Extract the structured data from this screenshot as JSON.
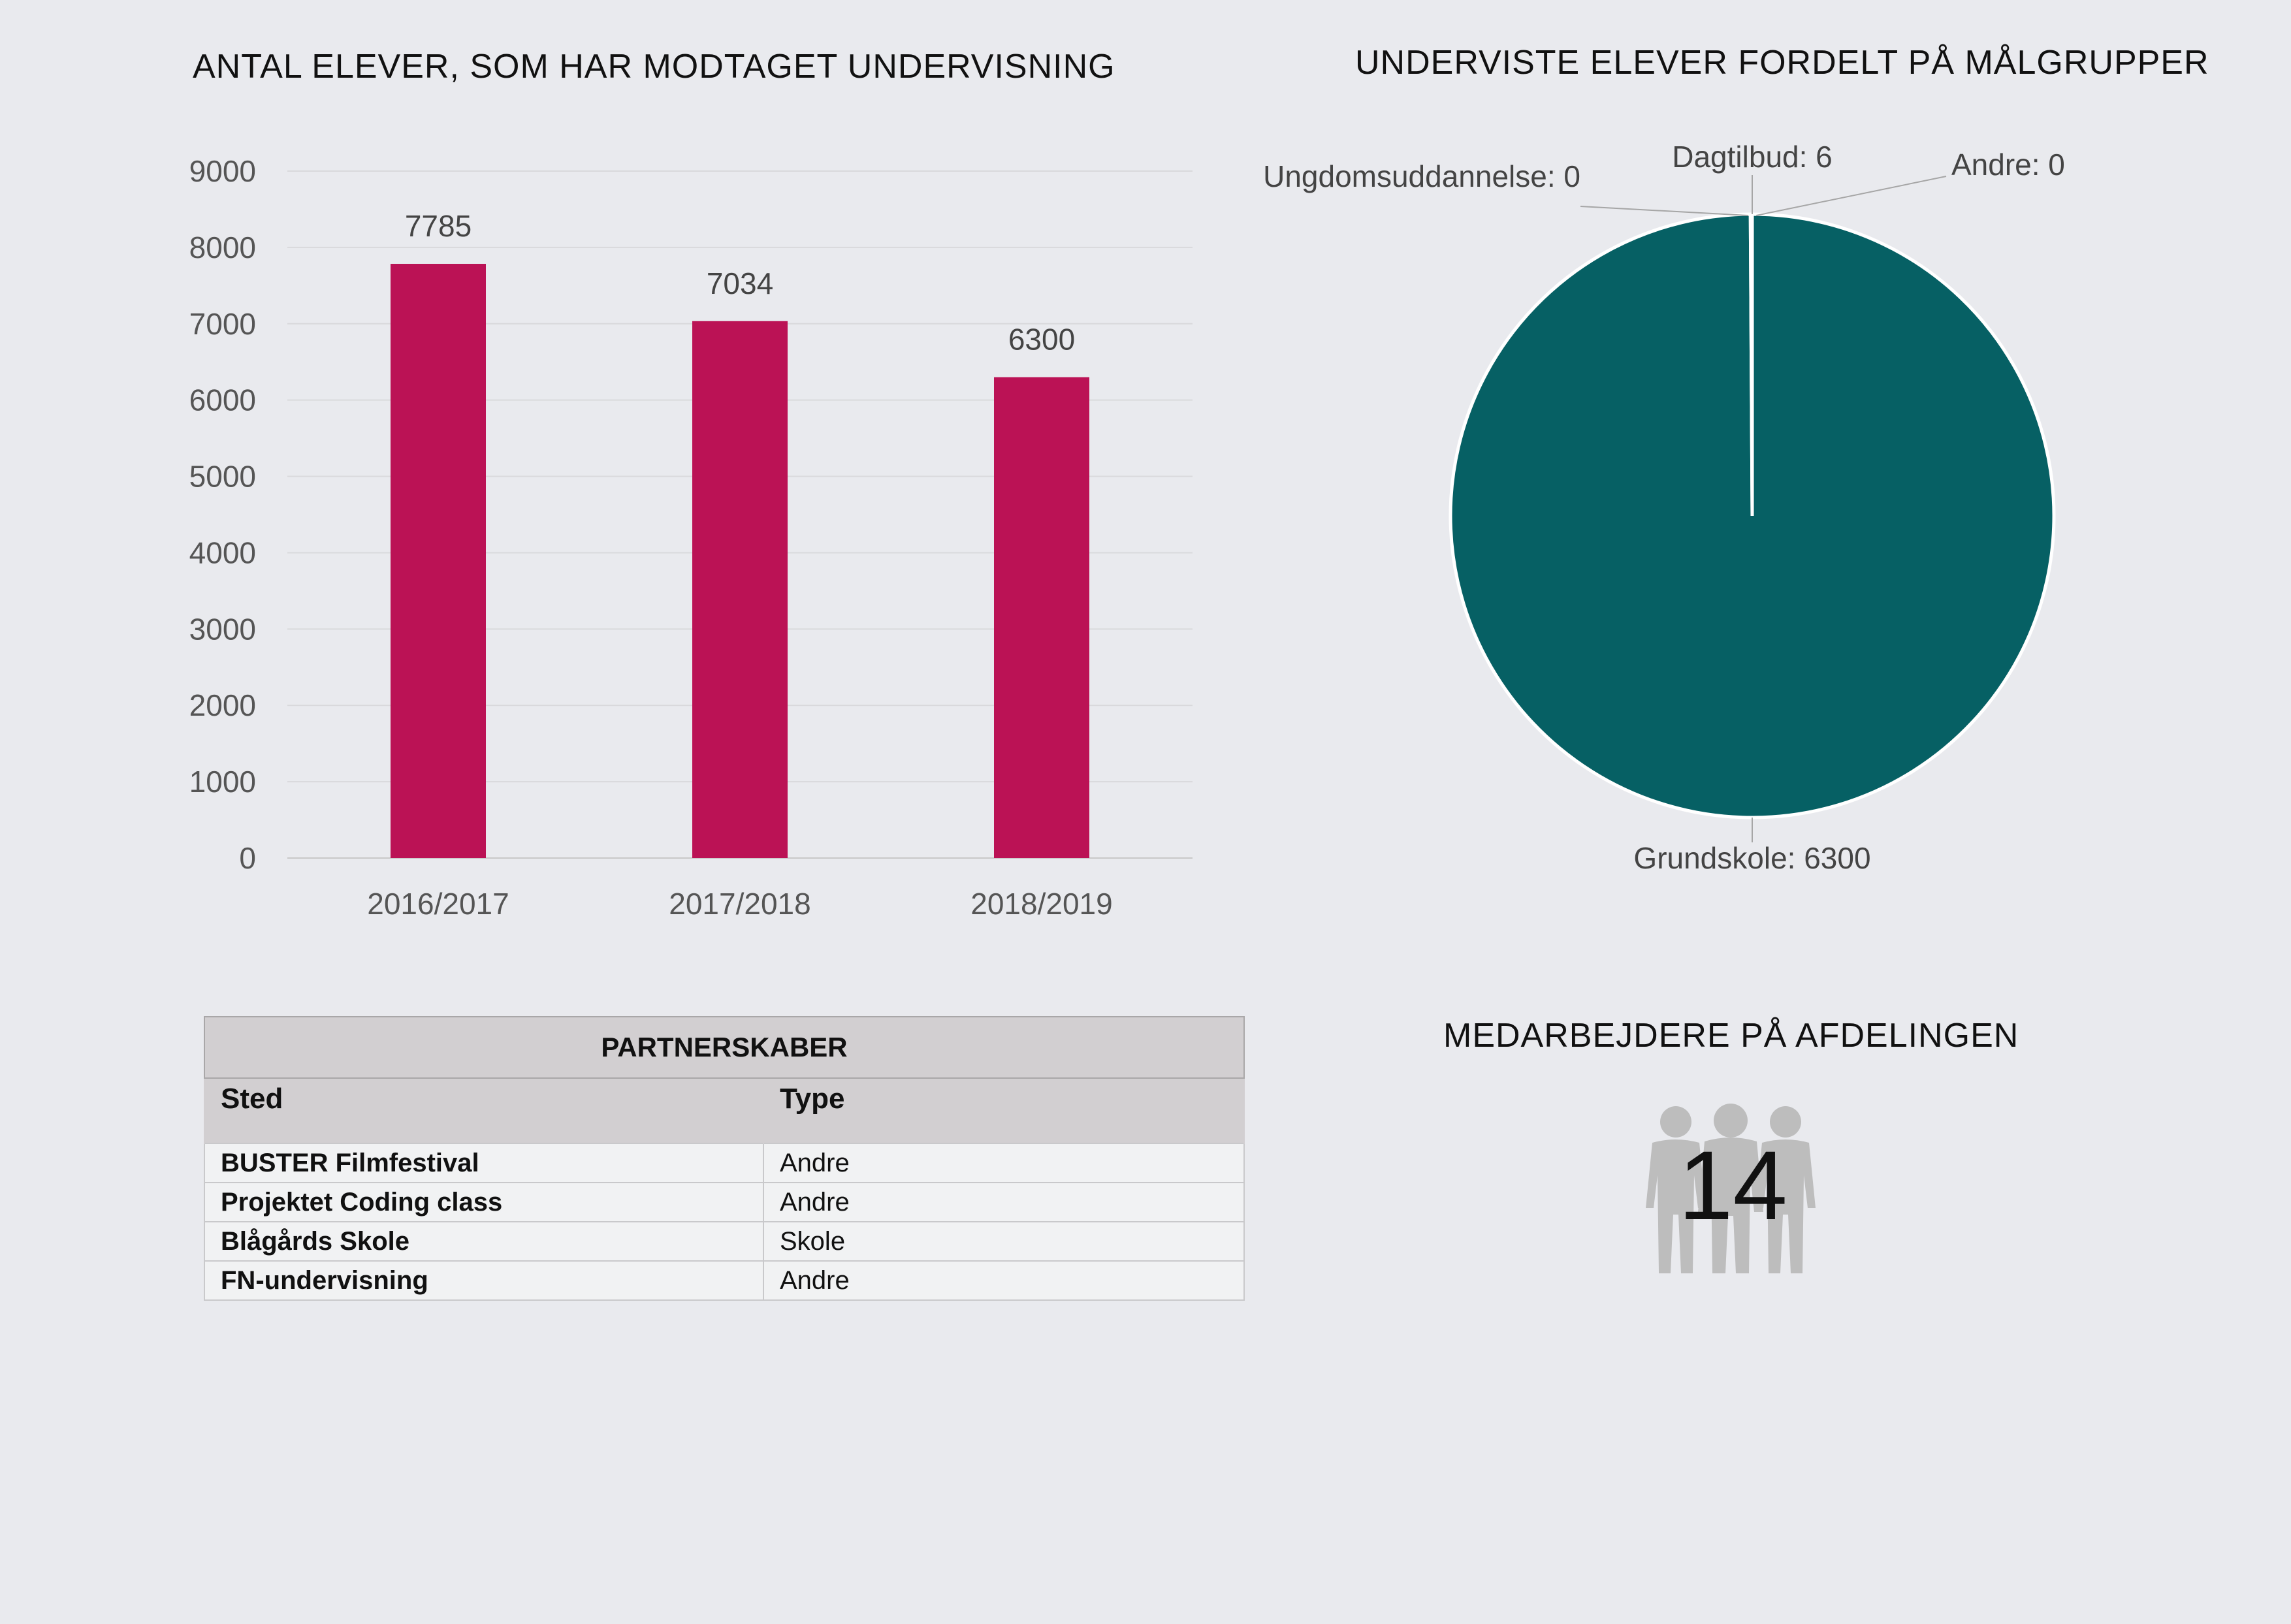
{
  "bar_panel": {
    "title": "ANTAL ELEVER, SOM HAR MODTAGET UNDERVISNING"
  },
  "pie_panel": {
    "title": "UNDERVISTE ELEVER FORDELT PÅ MÅLGRUPPER"
  },
  "staff_panel": {
    "title": "MEDARBEJDERE PÅ AFDELINGEN",
    "count": "14",
    "icon": "people-group-icon"
  },
  "partnerships": {
    "caption": "PARTNERSKABER",
    "columns": [
      "Sted",
      "Type"
    ],
    "rows": [
      [
        "BUSTER Filmfestival",
        "Andre"
      ],
      [
        "Projektet Coding class",
        "Andre"
      ],
      [
        "Blågårds Skole",
        "Skole"
      ],
      [
        "FN-undervisning",
        "Andre"
      ]
    ]
  },
  "colors": {
    "bar": "#bb1255",
    "pie": "#066064",
    "background": "#e9eaee"
  },
  "chart_data": [
    {
      "type": "bar",
      "title": "ANTAL ELEVER, SOM HAR MODTAGET UNDERVISNING",
      "categories": [
        "2016/2017",
        "2017/2018",
        "2018/2019"
      ],
      "values": [
        7785,
        7034,
        6300
      ],
      "data_labels": [
        "7785",
        "7034",
        "6300"
      ],
      "ylim": [
        0,
        9000
      ],
      "yticks": [
        0,
        1000,
        2000,
        3000,
        4000,
        5000,
        6000,
        7000,
        8000,
        9000
      ],
      "grid": true,
      "xlabel": "",
      "ylabel": ""
    },
    {
      "type": "pie",
      "title": "UNDERVISTE ELEVER FORDELT PÅ MÅLGRUPPER",
      "slices": [
        {
          "label": "Grundskole",
          "value": 6300,
          "text": "Grundskole: 6300"
        },
        {
          "label": "Ungdomsuddannelse",
          "value": 0,
          "text": "Ungdomsuddannelse: 0"
        },
        {
          "label": "Dagtilbud",
          "value": 6,
          "text": "Dagtilbud: 6"
        },
        {
          "label": "Andre",
          "value": 0,
          "text": "Andre: 0"
        }
      ]
    }
  ]
}
